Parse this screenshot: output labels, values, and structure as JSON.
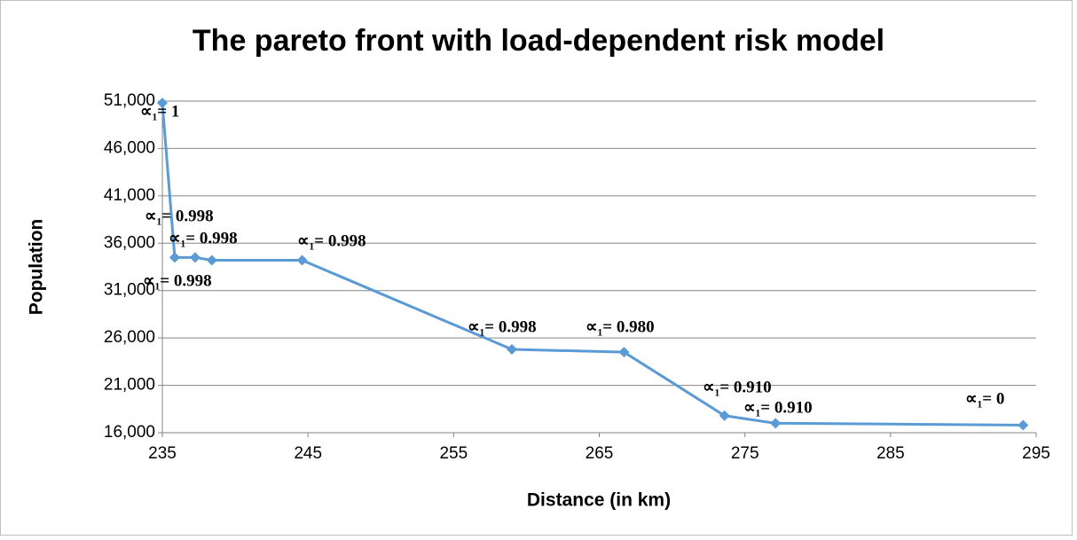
{
  "chart_data": {
    "type": "line",
    "title": "The pareto front with load-dependent risk model",
    "x_label": "Distance (in km)",
    "y_label": "Population",
    "series": [
      {
        "name": "Pareto front",
        "color": "#5b9bd5",
        "x": [
          235,
          235.85,
          237.25,
          238.4,
          244.6,
          259.0,
          266.7,
          273.6,
          277.1,
          294.1
        ],
        "values": [
          50800,
          34500,
          34500,
          34200,
          34200,
          24800,
          24500,
          17800,
          17000,
          16800
        ]
      }
    ],
    "annotations": [
      "∝₁= 1",
      "∝₁= 0.998",
      "∝₁= 0.998",
      "∝₁= 0.998",
      "∝₁= 0.998",
      "∝₁= 0.998",
      "∝₁= 0.980",
      "∝₁= 0.910",
      "∝₁= 0.910",
      "∝₁= 0"
    ],
    "xlim": [
      235,
      295
    ],
    "xticks": [
      235,
      245,
      255,
      265,
      275,
      285,
      295
    ],
    "ylim": [
      16000,
      51000
    ],
    "yticks": [
      {
        "value": 16000,
        "label": "16,000"
      },
      {
        "value": 21000,
        "label": "21,000"
      },
      {
        "value": 26000,
        "label": "26,000"
      },
      {
        "value": 31000,
        "label": "31,000"
      },
      {
        "value": 36000,
        "label": "36,000"
      },
      {
        "value": 41000,
        "label": "41,000"
      },
      {
        "value": 46000,
        "label": "46,000"
      },
      {
        "value": 51000,
        "label": "51,000"
      }
    ],
    "grid": true
  }
}
